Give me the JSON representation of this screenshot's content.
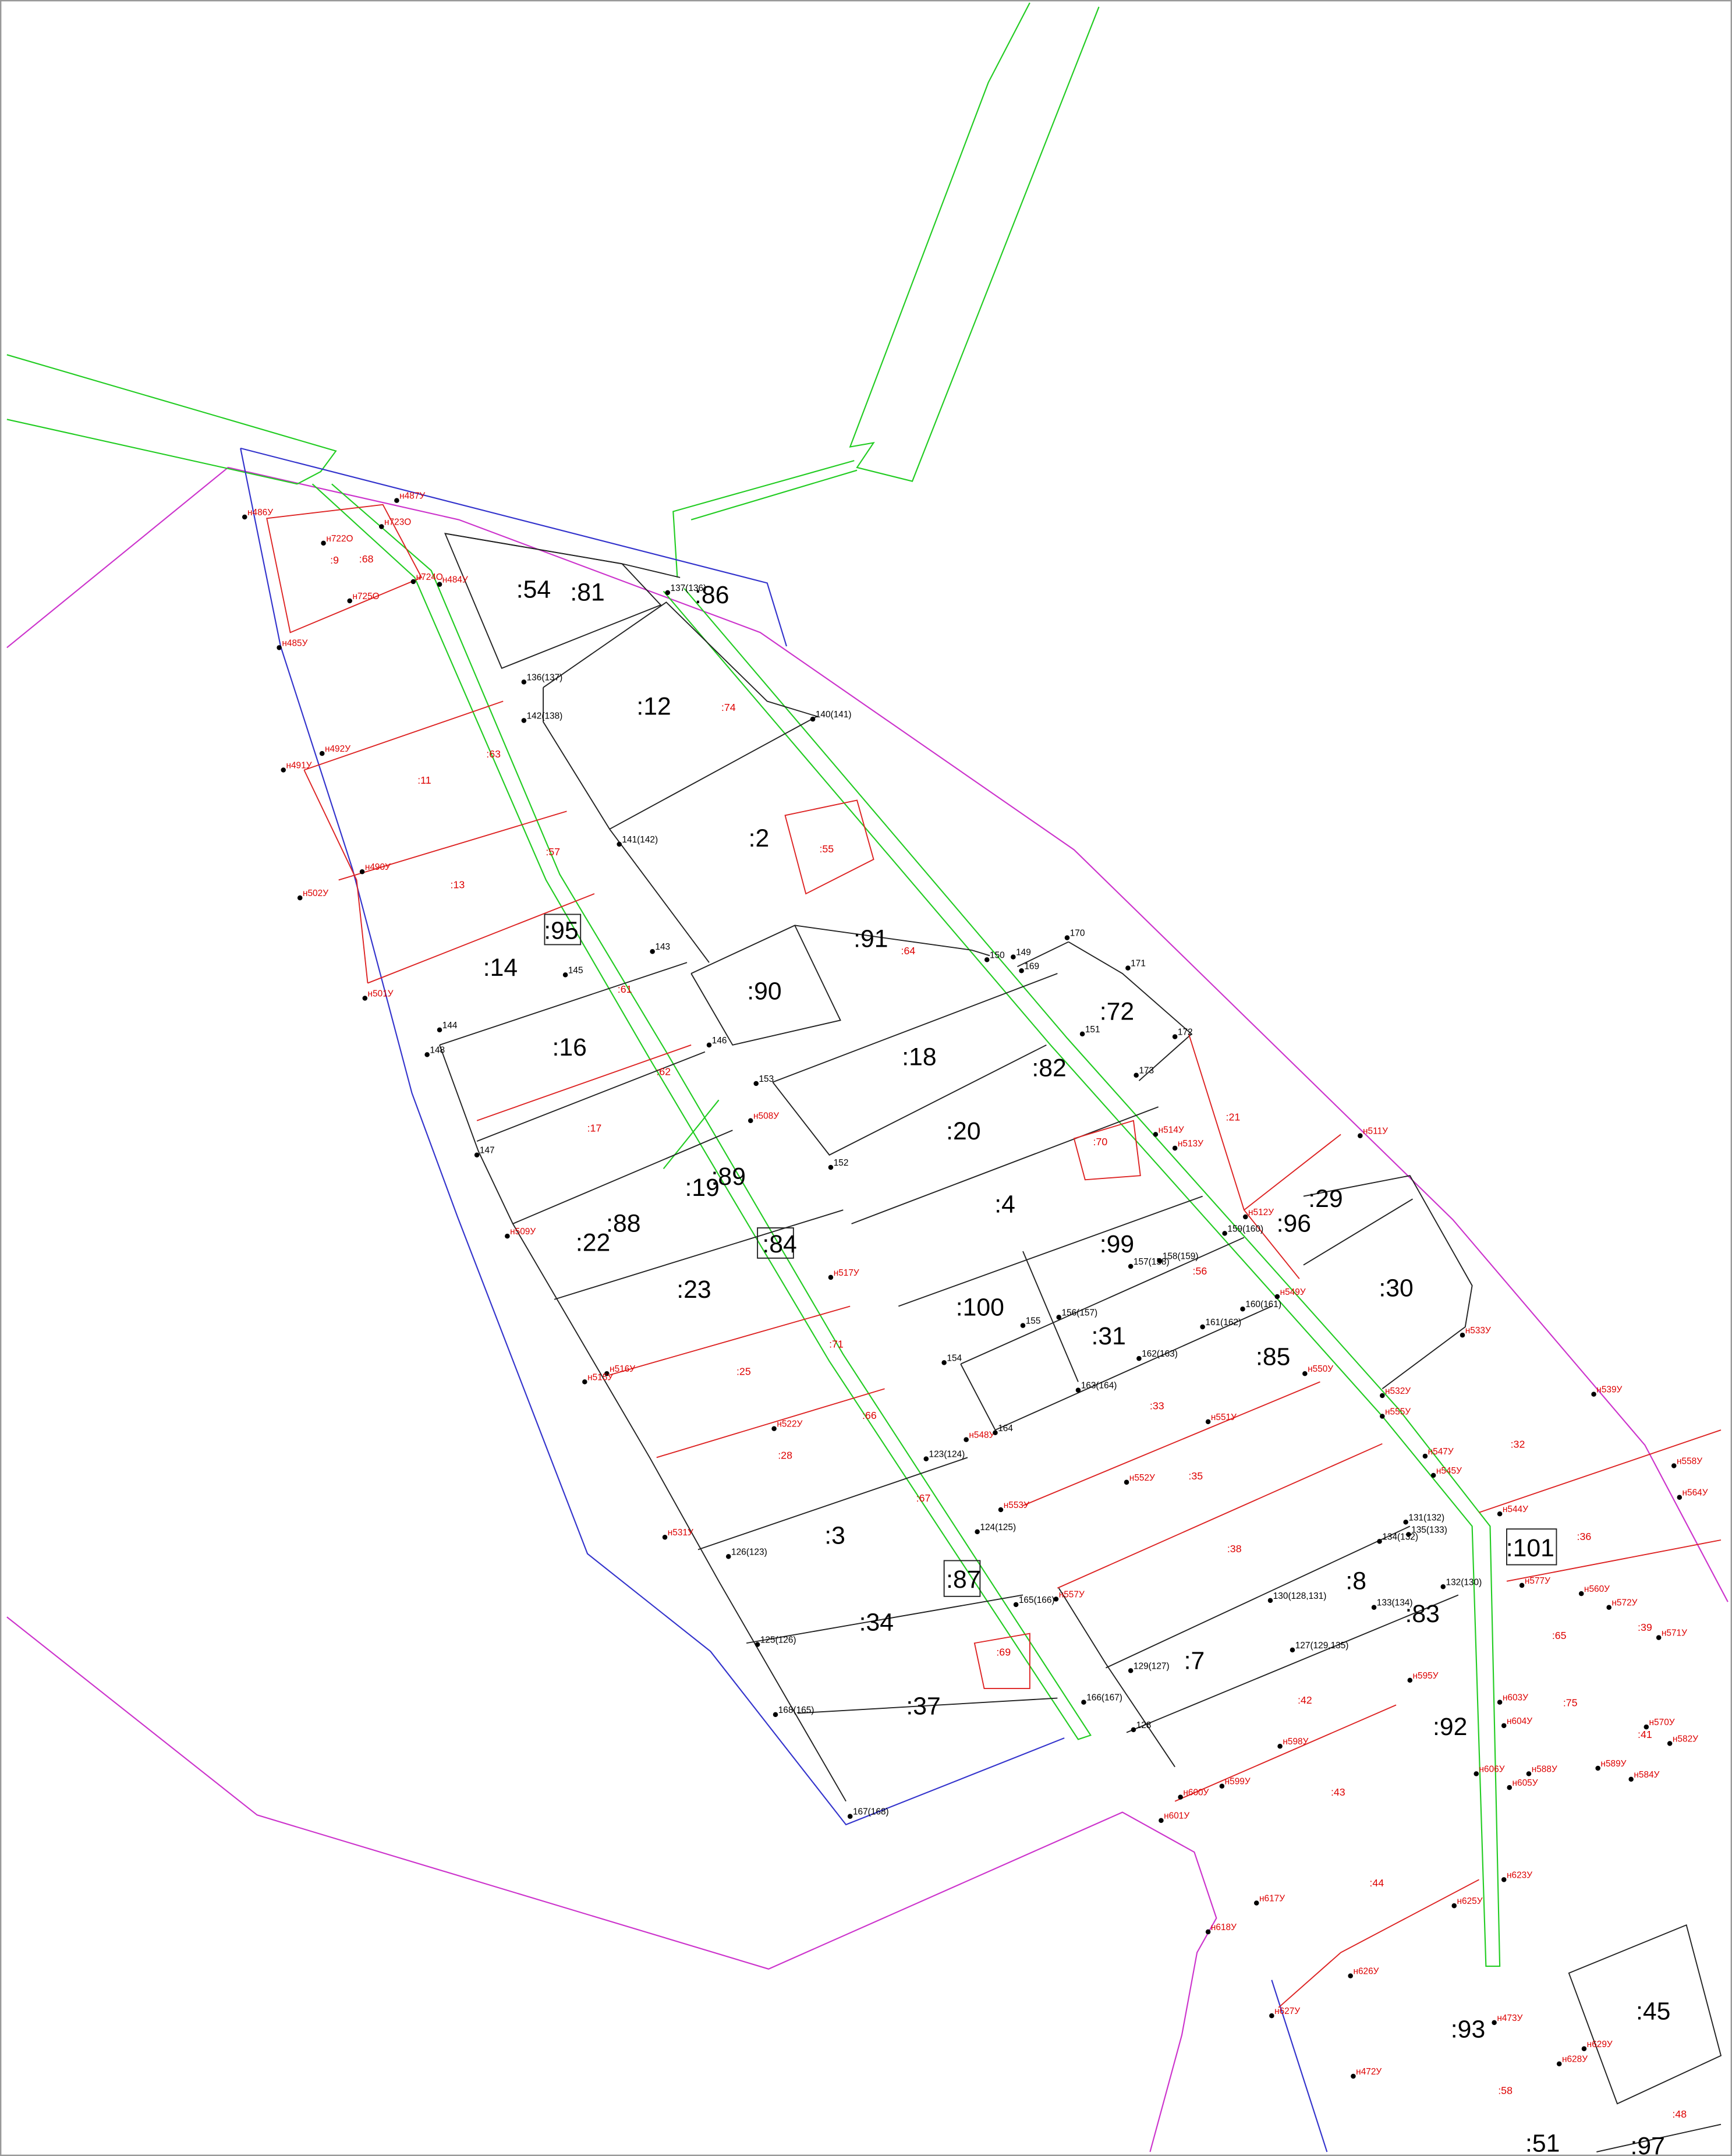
{
  "parcels": [
    ":54",
    ":81",
    ":86",
    ":12",
    ":2",
    ":91",
    ":95",
    ":14",
    ":90",
    ":72",
    ":16",
    ":18",
    ":82",
    ":20",
    ":4",
    ":29",
    ":96",
    ":89",
    ":19",
    ":88",
    ":22",
    ":84",
    ":99",
    ":23",
    ":30",
    ":100",
    ":31",
    ":85",
    ":101",
    ":3",
    ":87",
    ":8",
    ":83",
    ":34",
    ":7",
    ":37",
    ":92",
    ":93",
    ":45",
    ":97",
    ":51"
  ],
  "subparcels": [
    ":9",
    ":68",
    ":11",
    ":63",
    ":57",
    ":13",
    ":55",
    ":64",
    ":74",
    ":61",
    ":62",
    ":17",
    ":70",
    ":21",
    ":56",
    ":25",
    ":71",
    ":66",
    ":28",
    ":33",
    ":35",
    ":67",
    ":38",
    ":36",
    ":32",
    ":69",
    ":42",
    ":43",
    ":44",
    ":41",
    ":39",
    ":65",
    ":75",
    ":58",
    ":48"
  ],
  "red_points": [
    "н486У",
    "н487У",
    "н723О",
    "н722О",
    "н724О",
    "н484У",
    "н725О",
    "н485У",
    "н491У",
    "н492У",
    "н502У",
    "н490У",
    "н501У",
    "н509У",
    "н508У",
    "н511У",
    "н517У",
    "н516У",
    "н515У",
    "н522У",
    "н531У",
    "н548У",
    "н553У",
    "н557У",
    "н598У",
    "н599У",
    "н600У",
    "н601У",
    "н617У",
    "н618У",
    "н627У",
    "н626У",
    "н472У",
    "н473У",
    "н629У",
    "н628У",
    "н625У",
    "н623У",
    "н539У",
    "н558У",
    "н564У",
    "н571У",
    "н570У",
    "н582У",
    "н584У",
    "н533У",
    "н532У",
    "н555У",
    "н547У",
    "н545У",
    "н544У",
    "н549У",
    "н550У",
    "н551У",
    "н552У",
    "н512У",
    "н513У",
    "н514У",
    "н603У",
    "н604У",
    "н605У",
    "н606У",
    "н595У",
    "н577У",
    "н560У",
    "н572У",
    "н588У",
    "н589У"
  ],
  "black_points": [
    "137(136)",
    "136(137)",
    "142(138)",
    "140(141)",
    "141(142)",
    "149",
    "150",
    "169",
    "170",
    "171",
    "172",
    "173",
    "151",
    "153",
    "152",
    "147",
    "148",
    "143",
    "144",
    "145",
    "146",
    "154",
    "155",
    "156(157)",
    "157(158)",
    "158(159)",
    "159(160)",
    "160(161)",
    "161(162)",
    "162(163)",
    "163(164)",
    "164",
    "123(124)",
    "124(125)",
    "126(123)",
    "125(126)",
    "165(166)",
    "166(167)",
    "168(165)",
    "167(168)",
    "129(127)",
    "130(128,131)",
    "127(129,135)",
    "133(134)",
    "132(130)",
    "128",
    "131(132)",
    "135(133)",
    "134(132)"
  ]
}
